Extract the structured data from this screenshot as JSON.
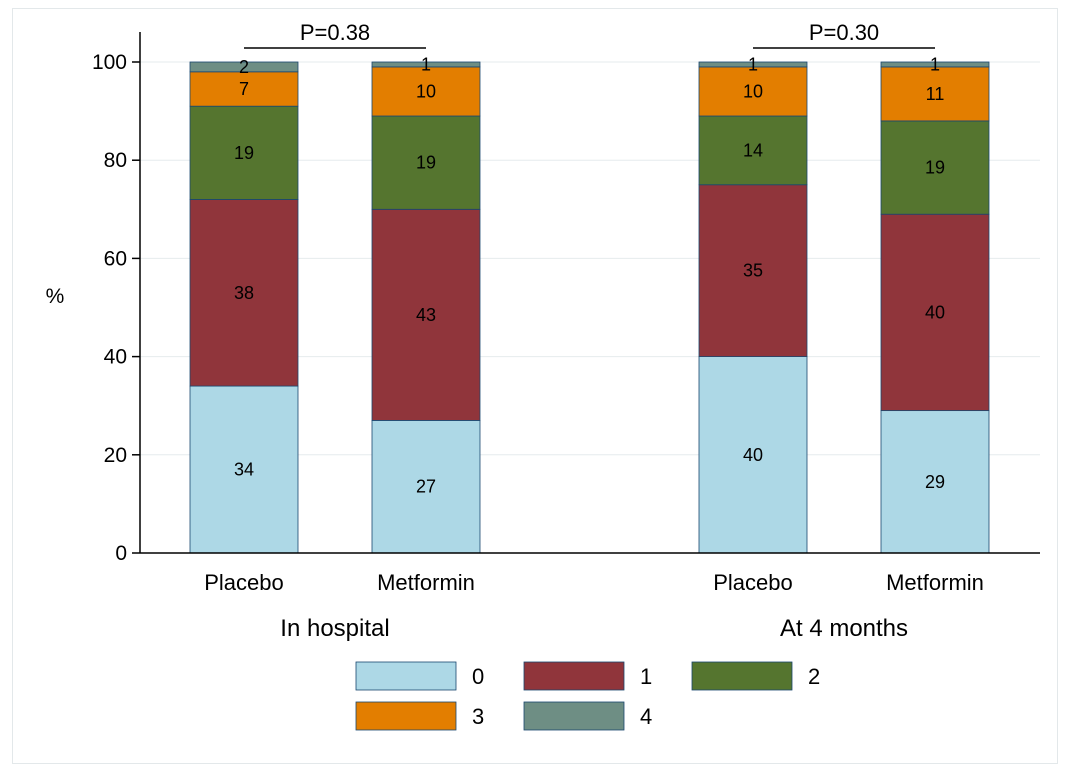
{
  "chart_data": {
    "type": "stacked-bar",
    "ylabel": "%",
    "ylim": [
      0,
      100
    ],
    "yticks": [
      0,
      20,
      40,
      60,
      80,
      100
    ],
    "grid": true,
    "legend_position": "bottom",
    "stack_levels": [
      "0",
      "1",
      "2",
      "3",
      "4"
    ],
    "colors": {
      "0": "#add8e6",
      "1": "#90353b",
      "2": "#55752f",
      "3": "#e37e00",
      "4": "#6e8e84"
    },
    "groups": [
      {
        "label": "In hospital",
        "pvalue": "P=0.38",
        "bars": [
          {
            "label": "Placebo",
            "values": [
              34,
              38,
              19,
              7,
              2
            ],
            "labels": [
              "34",
              "38",
              "19",
              "7",
              "2"
            ]
          },
          {
            "label": "Metformin",
            "values": [
              27,
              43,
              19,
              10,
              1
            ],
            "labels": [
              "27",
              "43",
              "19",
              "10",
              "1"
            ]
          }
        ]
      },
      {
        "label": "At 4 months",
        "pvalue": "P=0.30",
        "bars": [
          {
            "label": "Placebo",
            "values": [
              40,
              35,
              14,
              10,
              1
            ],
            "labels": [
              "40",
              "35",
              "14",
              "10",
              "1"
            ]
          },
          {
            "label": "Metformin",
            "values": [
              29,
              40,
              19,
              11,
              1
            ],
            "labels": [
              "29",
              "40",
              "19",
              "11",
              "1"
            ]
          }
        ]
      }
    ]
  }
}
